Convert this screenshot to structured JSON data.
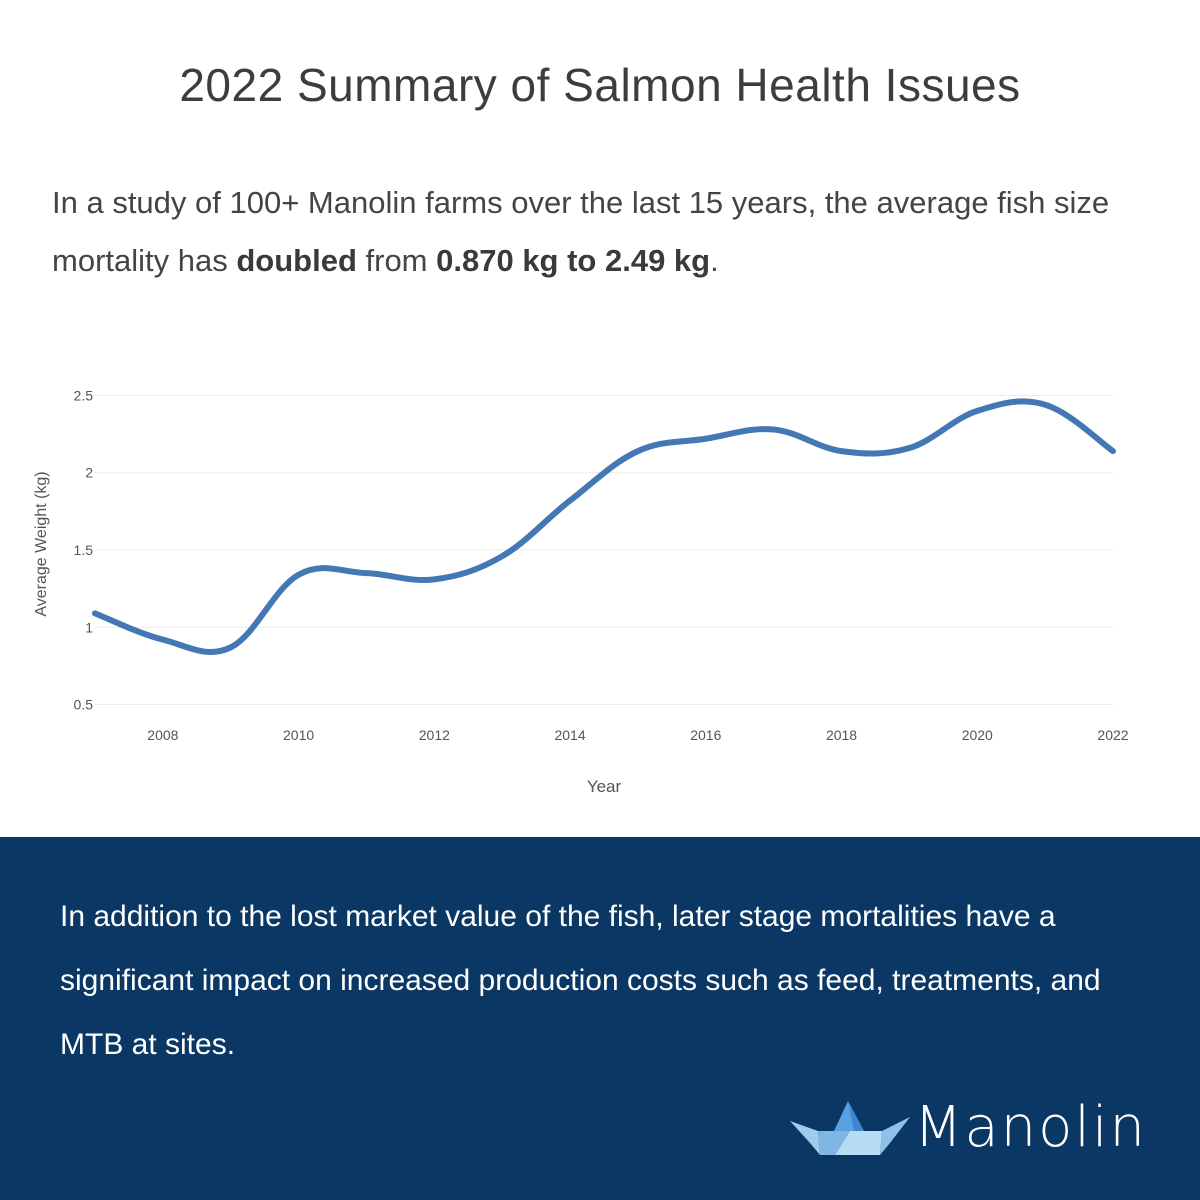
{
  "title": "2022 Summary of Salmon Health Issues",
  "intro": {
    "part1": "In a study of 100+ Manolin farms over the last 15 years, the average fish size mortality has ",
    "bold1": "doubled",
    "part2": " from ",
    "bold2": "0.870 kg to 2.49 kg",
    "part3": "."
  },
  "chart_data": {
    "type": "line",
    "title": "",
    "xlabel": "Year",
    "ylabel": "Average Weight (kg)",
    "x": [
      2007,
      2008,
      2009,
      2010,
      2011,
      2012,
      2013,
      2014,
      2015,
      2016,
      2017,
      2018,
      2019,
      2020,
      2021,
      2022
    ],
    "values": [
      1.09,
      0.92,
      0.87,
      1.34,
      1.35,
      1.31,
      1.46,
      1.82,
      2.14,
      2.22,
      2.28,
      2.14,
      2.16,
      2.4,
      2.44,
      2.14
    ],
    "xlim": [
      2007,
      2022
    ],
    "ylim": [
      0.4,
      2.6
    ],
    "xticks": [
      2008,
      2010,
      2012,
      2014,
      2016,
      2018,
      2020,
      2022
    ],
    "yticks": [
      0.5,
      1,
      1.5,
      2,
      2.5
    ],
    "ytick_labels": [
      "0.5",
      "1",
      "1.5",
      "2",
      "2.5"
    ],
    "line_color": "#4478b4",
    "grid": true
  },
  "footer": {
    "text": "In addition to the lost market value of the fish, later stage mortalities have a significant impact on increased production costs such as feed, treatments, and MTB at sites.",
    "background": "#0b3764"
  },
  "logo": {
    "wordmark": "Manolin",
    "icon": "paper-boat-icon"
  }
}
